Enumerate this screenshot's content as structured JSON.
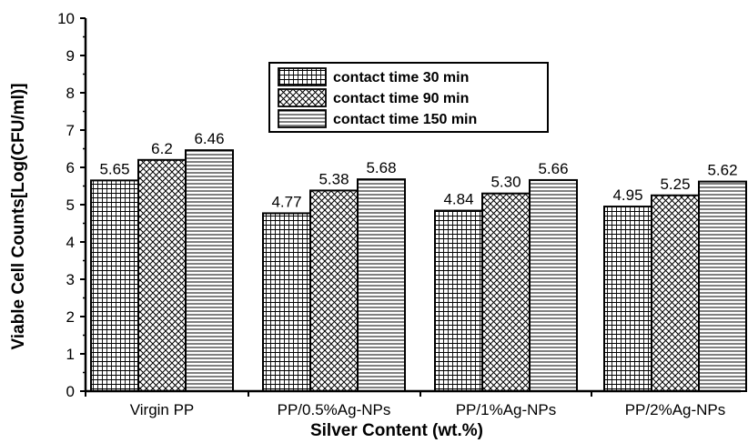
{
  "chart_data": {
    "type": "bar",
    "categories": [
      "Virgin PP",
      "PP/0.5%Ag-NPs",
      "PP/1%Ag-NPs",
      "PP/2%Ag-NPs"
    ],
    "series": [
      {
        "name": "contact time 30 min",
        "values": [
          5.65,
          4.77,
          4.84,
          4.95
        ],
        "labels": [
          "5.65",
          "4.77",
          "4.84",
          "4.95"
        ],
        "pattern": "grid"
      },
      {
        "name": "contact time 90 min",
        "values": [
          6.2,
          5.38,
          5.3,
          5.25
        ],
        "labels": [
          "6.2",
          "5.38",
          "5.30",
          "5.25"
        ],
        "pattern": "crosshatch"
      },
      {
        "name": "contact time 150 min",
        "values": [
          6.46,
          5.68,
          5.66,
          5.62
        ],
        "labels": [
          "6.46",
          "5.68",
          "5.66",
          "5.62"
        ],
        "pattern": "horizontal"
      }
    ],
    "xlabel": "Silver Content (wt.%)",
    "ylabel": "Viable Cell Counts[Log(CFU/ml)]",
    "ylim": [
      0,
      10
    ],
    "yticks": [
      0,
      1,
      2,
      3,
      4,
      5,
      6,
      7,
      8,
      9,
      10
    ],
    "grid": false,
    "legend_position": "top-center"
  }
}
